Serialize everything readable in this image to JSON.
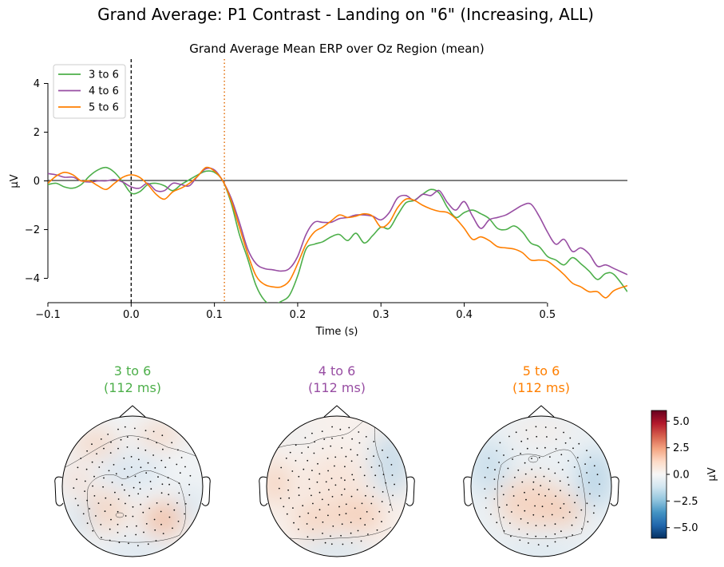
{
  "figure": {
    "suptitle": "Grand Average: P1 Contrast - Landing on \"6\" (Increasing, ALL)"
  },
  "erp": {
    "title": "Grand Average Mean ERP over Oz Region (mean)",
    "xlabel": "Time (s)",
    "ylabel": "µV",
    "x_ticks": [
      "−0.1",
      "0.0",
      "0.1",
      "0.2",
      "0.3",
      "0.4",
      "0.5"
    ],
    "y_ticks": [
      "4",
      "2",
      "0",
      "−2",
      "−4"
    ]
  },
  "topomaps": [
    {
      "name": "3 to 6",
      "time": "(112 ms)"
    },
    {
      "name": "4 to 6",
      "time": "(112 ms)"
    },
    {
      "name": "5 to 6",
      "time": "(112 ms)"
    }
  ],
  "colorbar": {
    "label": "µV",
    "ticks": [
      "5.0",
      "2.5",
      "0.0",
      "−2.5",
      "−5.0"
    ],
    "range": [
      -6,
      6
    ]
  },
  "chart_data": {
    "type": "line",
    "title": "Grand Average Mean ERP over Oz Region (mean)",
    "xlabel": "Time (s)",
    "ylabel": "µV",
    "xlim": [
      -0.1,
      0.596
    ],
    "ylim": [
      -5,
      5
    ],
    "legend_position": "top-left",
    "vlines": [
      {
        "x": 0.0,
        "style": "dashed",
        "color": "#000000"
      },
      {
        "x": 0.112,
        "style": "dotted",
        "color": "#e5781a"
      }
    ],
    "hline": 0,
    "series": [
      {
        "name": "3 to 6",
        "color": "#4daf4a",
        "points": [
          [
            -0.1,
            -0.15
          ],
          [
            -0.09,
            -0.1
          ],
          [
            -0.08,
            -0.25
          ],
          [
            -0.07,
            -0.3
          ],
          [
            -0.06,
            -0.15
          ],
          [
            -0.05,
            0.2
          ],
          [
            -0.04,
            0.45
          ],
          [
            -0.03,
            0.55
          ],
          [
            -0.02,
            0.35
          ],
          [
            -0.01,
            -0.05
          ],
          [
            0.0,
            -0.5
          ],
          [
            0.01,
            -0.45
          ],
          [
            0.02,
            -0.15
          ],
          [
            0.03,
            -0.1
          ],
          [
            0.04,
            -0.2
          ],
          [
            0.05,
            -0.4
          ],
          [
            0.06,
            -0.15
          ],
          [
            0.07,
            0.05
          ],
          [
            0.08,
            0.25
          ],
          [
            0.09,
            0.4
          ],
          [
            0.1,
            0.35
          ],
          [
            0.11,
            0.0
          ],
          [
            0.12,
            -0.9
          ],
          [
            0.13,
            -2.2
          ],
          [
            0.14,
            -3.2
          ],
          [
            0.15,
            -4.3
          ],
          [
            0.16,
            -4.9
          ],
          [
            0.17,
            -5.1
          ],
          [
            0.18,
            -4.95
          ],
          [
            0.19,
            -4.7
          ],
          [
            0.2,
            -3.9
          ],
          [
            0.21,
            -2.8
          ],
          [
            0.22,
            -2.6
          ],
          [
            0.23,
            -2.5
          ],
          [
            0.24,
            -2.3
          ],
          [
            0.25,
            -2.2
          ],
          [
            0.26,
            -2.45
          ],
          [
            0.27,
            -2.15
          ],
          [
            0.28,
            -2.55
          ],
          [
            0.29,
            -2.25
          ],
          [
            0.3,
            -1.9
          ],
          [
            0.31,
            -1.95
          ],
          [
            0.32,
            -1.4
          ],
          [
            0.33,
            -0.9
          ],
          [
            0.34,
            -0.8
          ],
          [
            0.35,
            -0.55
          ],
          [
            0.36,
            -0.35
          ],
          [
            0.37,
            -0.5
          ],
          [
            0.38,
            -1.1
          ],
          [
            0.39,
            -1.5
          ],
          [
            0.4,
            -1.3
          ],
          [
            0.41,
            -1.2
          ],
          [
            0.42,
            -1.35
          ],
          [
            0.43,
            -1.55
          ],
          [
            0.44,
            -1.95
          ],
          [
            0.45,
            -2.0
          ],
          [
            0.46,
            -1.85
          ],
          [
            0.47,
            -2.1
          ],
          [
            0.48,
            -2.55
          ],
          [
            0.49,
            -2.7
          ],
          [
            0.5,
            -3.1
          ],
          [
            0.51,
            -3.25
          ],
          [
            0.52,
            -3.45
          ],
          [
            0.53,
            -3.15
          ],
          [
            0.54,
            -3.4
          ],
          [
            0.55,
            -3.7
          ],
          [
            0.56,
            -4.05
          ],
          [
            0.57,
            -3.8
          ],
          [
            0.58,
            -3.85
          ],
          [
            0.596,
            -4.55
          ]
        ]
      },
      {
        "name": "4 to 6",
        "color": "#984ea3",
        "points": [
          [
            -0.1,
            0.3
          ],
          [
            -0.09,
            0.25
          ],
          [
            -0.08,
            0.15
          ],
          [
            -0.07,
            0.15
          ],
          [
            -0.06,
            0.0
          ],
          [
            -0.05,
            -0.05
          ],
          [
            -0.04,
            0.0
          ],
          [
            -0.03,
            0.0
          ],
          [
            -0.02,
            0.05
          ],
          [
            -0.01,
            -0.05
          ],
          [
            0.0,
            -0.25
          ],
          [
            0.01,
            -0.3
          ],
          [
            0.02,
            -0.1
          ],
          [
            0.03,
            -0.4
          ],
          [
            0.04,
            -0.4
          ],
          [
            0.05,
            -0.1
          ],
          [
            0.06,
            -0.15
          ],
          [
            0.07,
            -0.2
          ],
          [
            0.08,
            0.2
          ],
          [
            0.09,
            0.5
          ],
          [
            0.1,
            0.45
          ],
          [
            0.11,
            0.0
          ],
          [
            0.12,
            -0.7
          ],
          [
            0.13,
            -1.7
          ],
          [
            0.14,
            -2.8
          ],
          [
            0.15,
            -3.4
          ],
          [
            0.16,
            -3.6
          ],
          [
            0.17,
            -3.65
          ],
          [
            0.18,
            -3.7
          ],
          [
            0.19,
            -3.6
          ],
          [
            0.2,
            -3.1
          ],
          [
            0.21,
            -2.2
          ],
          [
            0.22,
            -1.7
          ],
          [
            0.23,
            -1.7
          ],
          [
            0.24,
            -1.7
          ],
          [
            0.25,
            -1.55
          ],
          [
            0.26,
            -1.5
          ],
          [
            0.27,
            -1.4
          ],
          [
            0.28,
            -1.4
          ],
          [
            0.29,
            -1.45
          ],
          [
            0.3,
            -1.6
          ],
          [
            0.31,
            -1.3
          ],
          [
            0.32,
            -0.7
          ],
          [
            0.33,
            -0.6
          ],
          [
            0.34,
            -0.8
          ],
          [
            0.35,
            -0.55
          ],
          [
            0.36,
            -0.6
          ],
          [
            0.37,
            -0.4
          ],
          [
            0.38,
            -0.9
          ],
          [
            0.39,
            -1.2
          ],
          [
            0.4,
            -0.85
          ],
          [
            0.41,
            -1.45
          ],
          [
            0.42,
            -1.95
          ],
          [
            0.43,
            -1.6
          ],
          [
            0.44,
            -1.5
          ],
          [
            0.45,
            -1.4
          ],
          [
            0.46,
            -1.2
          ],
          [
            0.47,
            -1.0
          ],
          [
            0.48,
            -0.95
          ],
          [
            0.49,
            -1.45
          ],
          [
            0.5,
            -2.1
          ],
          [
            0.51,
            -2.6
          ],
          [
            0.52,
            -2.4
          ],
          [
            0.53,
            -2.9
          ],
          [
            0.54,
            -2.75
          ],
          [
            0.55,
            -3.0
          ],
          [
            0.56,
            -3.5
          ],
          [
            0.57,
            -3.45
          ],
          [
            0.58,
            -3.6
          ],
          [
            0.596,
            -3.85
          ]
        ]
      },
      {
        "name": "5 to 6",
        "color": "#ff7f00",
        "points": [
          [
            -0.1,
            -0.1
          ],
          [
            -0.09,
            0.2
          ],
          [
            -0.08,
            0.35
          ],
          [
            -0.07,
            0.25
          ],
          [
            -0.06,
            0.0
          ],
          [
            -0.05,
            0.0
          ],
          [
            -0.04,
            -0.2
          ],
          [
            -0.03,
            -0.35
          ],
          [
            -0.02,
            -0.1
          ],
          [
            -0.01,
            0.15
          ],
          [
            0.0,
            0.25
          ],
          [
            0.01,
            0.15
          ],
          [
            0.02,
            -0.15
          ],
          [
            0.03,
            -0.55
          ],
          [
            0.04,
            -0.75
          ],
          [
            0.05,
            -0.45
          ],
          [
            0.06,
            -0.3
          ],
          [
            0.07,
            -0.1
          ],
          [
            0.08,
            0.2
          ],
          [
            0.09,
            0.55
          ],
          [
            0.1,
            0.4
          ],
          [
            0.11,
            0.0
          ],
          [
            0.12,
            -0.8
          ],
          [
            0.13,
            -1.9
          ],
          [
            0.14,
            -3.0
          ],
          [
            0.15,
            -3.9
          ],
          [
            0.16,
            -4.25
          ],
          [
            0.17,
            -4.35
          ],
          [
            0.18,
            -4.35
          ],
          [
            0.19,
            -4.1
          ],
          [
            0.2,
            -3.4
          ],
          [
            0.21,
            -2.6
          ],
          [
            0.22,
            -2.1
          ],
          [
            0.23,
            -1.9
          ],
          [
            0.24,
            -1.65
          ],
          [
            0.25,
            -1.4
          ],
          [
            0.26,
            -1.5
          ],
          [
            0.27,
            -1.45
          ],
          [
            0.28,
            -1.35
          ],
          [
            0.29,
            -1.45
          ],
          [
            0.3,
            -1.9
          ],
          [
            0.31,
            -1.7
          ],
          [
            0.32,
            -1.1
          ],
          [
            0.33,
            -0.75
          ],
          [
            0.34,
            -0.8
          ],
          [
            0.35,
            -1.0
          ],
          [
            0.36,
            -1.15
          ],
          [
            0.37,
            -1.25
          ],
          [
            0.38,
            -1.3
          ],
          [
            0.39,
            -1.55
          ],
          [
            0.4,
            -1.95
          ],
          [
            0.41,
            -2.4
          ],
          [
            0.42,
            -2.3
          ],
          [
            0.43,
            -2.45
          ],
          [
            0.44,
            -2.7
          ],
          [
            0.45,
            -2.75
          ],
          [
            0.46,
            -2.8
          ],
          [
            0.47,
            -2.95
          ],
          [
            0.48,
            -3.25
          ],
          [
            0.49,
            -3.25
          ],
          [
            0.5,
            -3.3
          ],
          [
            0.51,
            -3.55
          ],
          [
            0.52,
            -3.85
          ],
          [
            0.53,
            -4.2
          ],
          [
            0.54,
            -4.35
          ],
          [
            0.55,
            -4.55
          ],
          [
            0.56,
            -4.55
          ],
          [
            0.57,
            -4.8
          ],
          [
            0.58,
            -4.5
          ],
          [
            0.596,
            -4.3
          ]
        ]
      }
    ]
  }
}
